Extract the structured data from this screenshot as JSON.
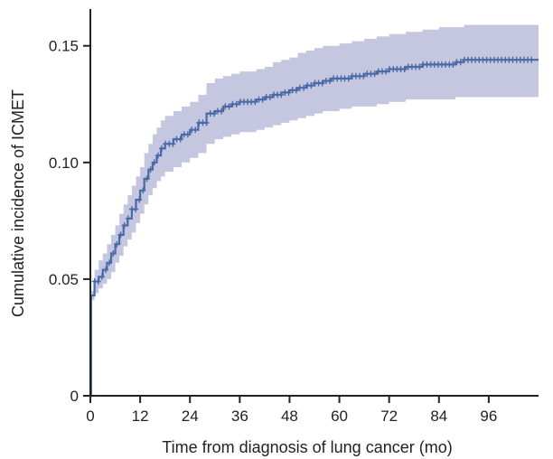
{
  "chart_data": {
    "type": "line",
    "title": "",
    "xlabel": "Time from diagnosis of lung cancer (mo)",
    "ylabel": "Cumulative incidence of ICMET",
    "xlim": [
      0,
      108
    ],
    "ylim": [
      0,
      0.165
    ],
    "x_ticks": [
      0,
      12,
      24,
      36,
      48,
      60,
      72,
      84,
      96
    ],
    "x_tick_labels": [
      "0",
      "12",
      "24",
      "36",
      "48",
      "60",
      "72",
      "84",
      "96"
    ],
    "y_ticks": [
      0,
      0.05,
      0.1,
      0.15
    ],
    "y_tick_labels": [
      "0",
      "0.05",
      "0.10",
      "0.15"
    ],
    "grid": false,
    "legend": "none",
    "colors": {
      "line": "#4a6aa5",
      "band": "#c4c7df",
      "axis": "#222222"
    },
    "series": [
      {
        "x": [
          0,
          0.2,
          1,
          2,
          3,
          4,
          5,
          6,
          7,
          8,
          9,
          10,
          11,
          12,
          13,
          14,
          15,
          16,
          17,
          18,
          20,
          22,
          24,
          26,
          28,
          30,
          32,
          34,
          36,
          38,
          40,
          42,
          44,
          46,
          48,
          50,
          52,
          54,
          56,
          58,
          60,
          63,
          66,
          69,
          72,
          76,
          80,
          84,
          88,
          90,
          95,
          100,
          105
        ],
        "y": [
          0,
          0.043,
          0.049,
          0.051,
          0.054,
          0.057,
          0.061,
          0.065,
          0.069,
          0.073,
          0.076,
          0.08,
          0.084,
          0.088,
          0.093,
          0.097,
          0.1,
          0.103,
          0.106,
          0.108,
          0.11,
          0.112,
          0.114,
          0.117,
          0.121,
          0.122,
          0.124,
          0.125,
          0.126,
          0.126,
          0.127,
          0.128,
          0.129,
          0.13,
          0.131,
          0.132,
          0.133,
          0.134,
          0.135,
          0.136,
          0.136,
          0.137,
          0.138,
          0.139,
          0.14,
          0.141,
          0.142,
          0.142,
          0.143,
          0.144,
          0.144,
          0.144,
          0.144
        ],
        "lower": [
          0,
          0.041,
          0.044,
          0.046,
          0.048,
          0.05,
          0.053,
          0.057,
          0.06,
          0.064,
          0.067,
          0.07,
          0.074,
          0.078,
          0.082,
          0.086,
          0.089,
          0.092,
          0.094,
          0.096,
          0.098,
          0.1,
          0.102,
          0.104,
          0.108,
          0.11,
          0.111,
          0.112,
          0.113,
          0.113,
          0.114,
          0.115,
          0.116,
          0.117,
          0.118,
          0.119,
          0.12,
          0.121,
          0.122,
          0.122,
          0.123,
          0.124,
          0.124,
          0.125,
          0.126,
          0.127,
          0.127,
          0.127,
          0.128,
          0.128,
          0.128,
          0.128,
          0.128
        ],
        "upper": [
          0,
          0.045,
          0.054,
          0.058,
          0.061,
          0.065,
          0.069,
          0.073,
          0.078,
          0.082,
          0.086,
          0.09,
          0.094,
          0.098,
          0.104,
          0.108,
          0.112,
          0.115,
          0.118,
          0.12,
          0.122,
          0.124,
          0.126,
          0.129,
          0.134,
          0.136,
          0.137,
          0.138,
          0.139,
          0.139,
          0.14,
          0.141,
          0.143,
          0.144,
          0.145,
          0.147,
          0.148,
          0.149,
          0.15,
          0.15,
          0.151,
          0.152,
          0.153,
          0.154,
          0.155,
          0.156,
          0.157,
          0.158,
          0.158,
          0.159,
          0.159,
          0.159,
          0.159
        ]
      }
    ]
  }
}
